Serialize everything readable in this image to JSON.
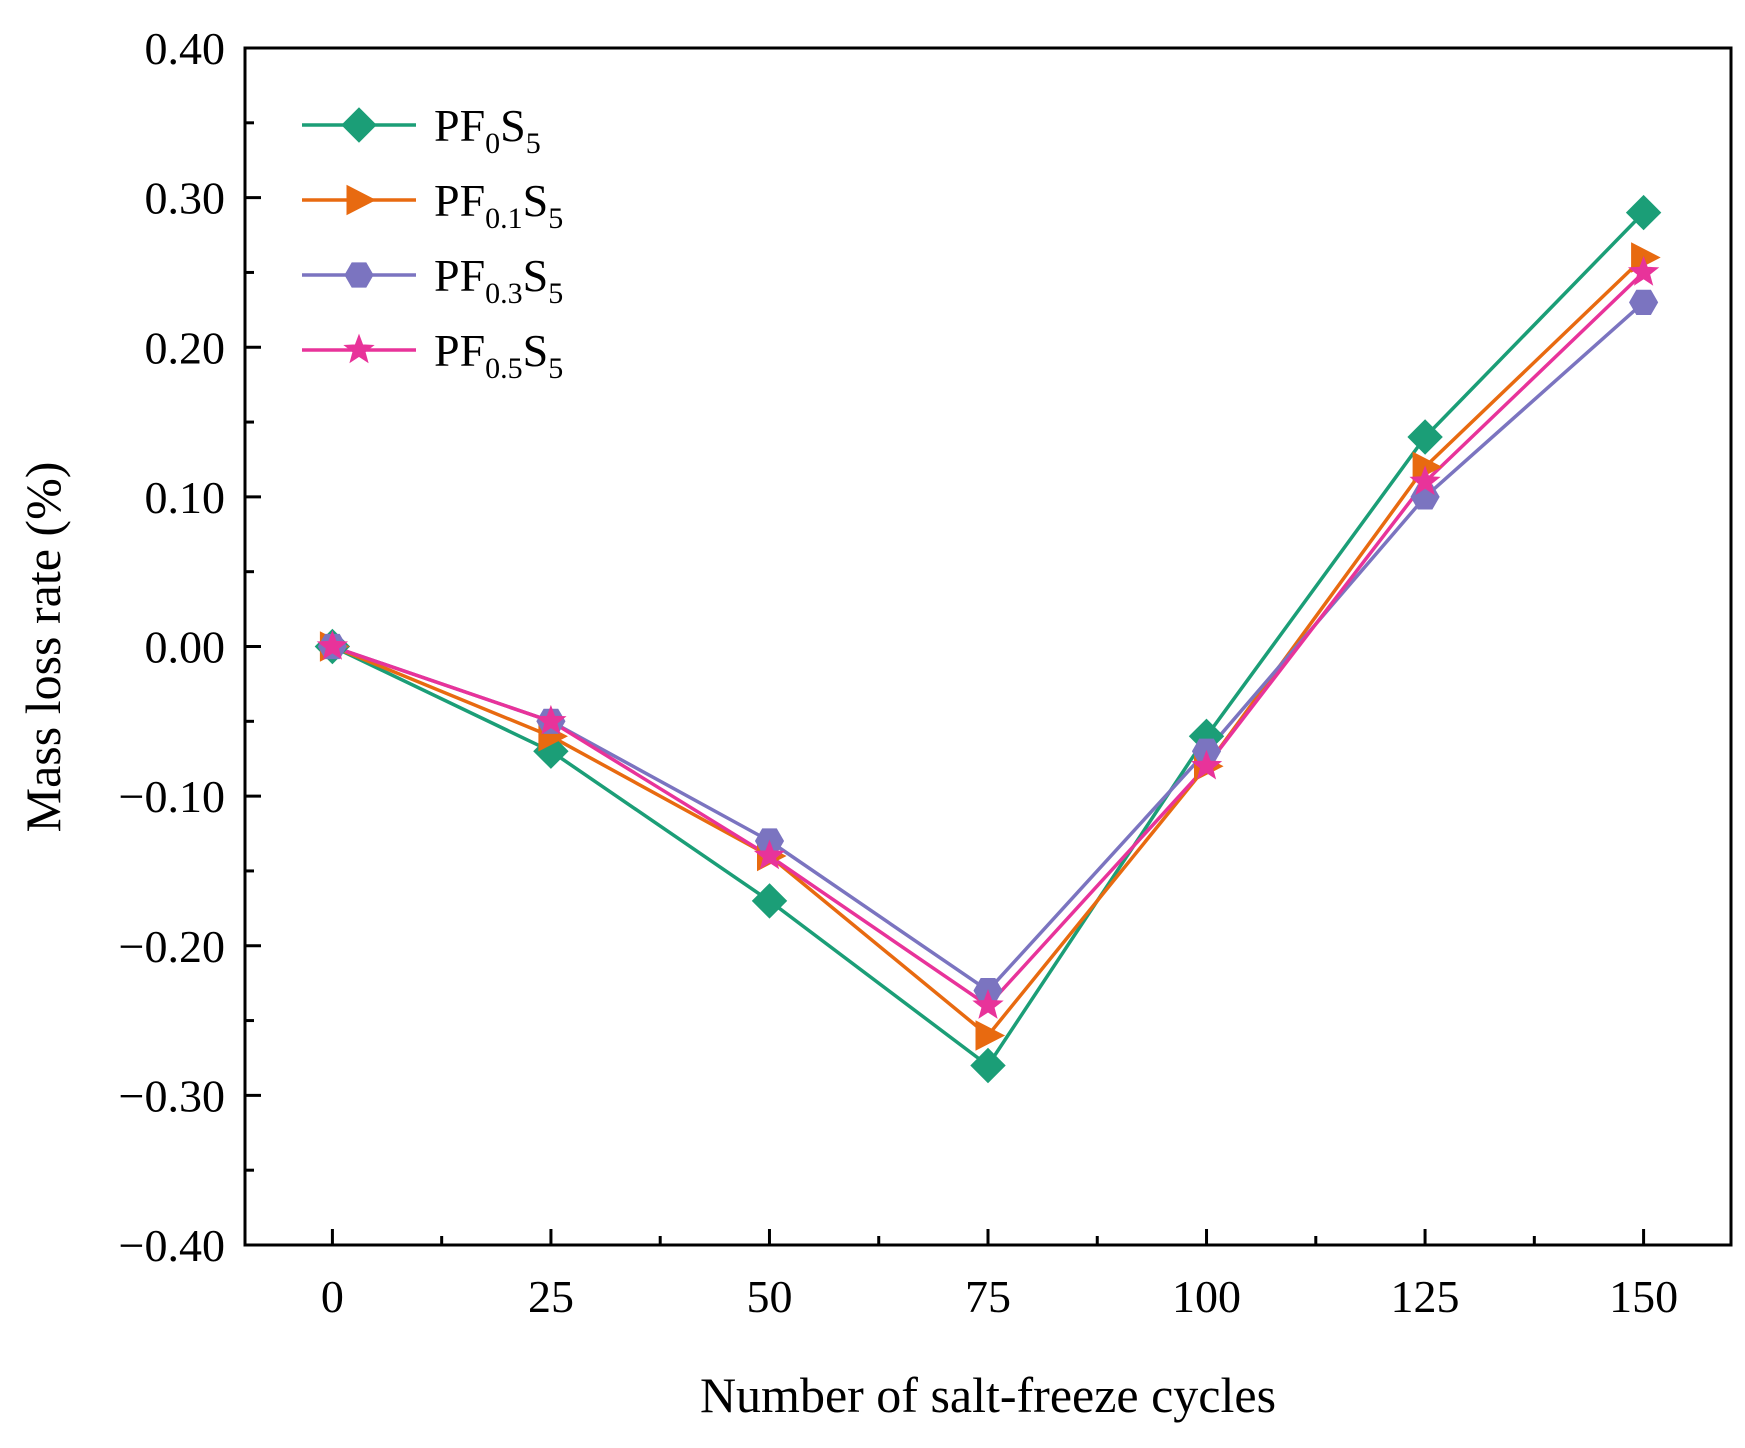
{
  "chart_data": {
    "type": "line",
    "title": "",
    "xlabel": "Number of salt-freeze cycles",
    "ylabel": "Mass loss rate (%)",
    "x": [
      0,
      25,
      50,
      75,
      100,
      125,
      150
    ],
    "xticks": [
      "0",
      "25",
      "50",
      "75",
      "100",
      "125",
      "150"
    ],
    "xlim": [
      -10,
      160
    ],
    "ylim": [
      -0.4,
      0.4
    ],
    "yticks": [
      0.4,
      0.3,
      0.2,
      0.1,
      0.0,
      -0.1,
      -0.2,
      -0.3,
      -0.4
    ],
    "yticklabels": [
      "0.40",
      "0.30",
      "0.20",
      "0.10",
      "0.00",
      "−0.10",
      "−0.20",
      "−0.30",
      "−0.40"
    ],
    "grid": false,
    "legend_position": "top-left",
    "series": [
      {
        "name": "PF0S5",
        "label_main": "PF",
        "label_sub1": "0",
        "label_mid": "S",
        "label_sub2": "5",
        "color": "#1b9e77",
        "marker": "diamond",
        "values": [
          0.0,
          -0.07,
          -0.17,
          -0.28,
          -0.06,
          0.14,
          0.29
        ]
      },
      {
        "name": "PF0.1S5",
        "label_main": "PF",
        "label_sub1": "0.1",
        "label_mid": "S",
        "label_sub2": "5",
        "color": "#e86a10",
        "marker": "triangle-right",
        "values": [
          0.0,
          -0.06,
          -0.14,
          -0.26,
          -0.08,
          0.12,
          0.26
        ]
      },
      {
        "name": "PF0.3S5",
        "label_main": "PF",
        "label_sub1": "0.3",
        "label_mid": "S",
        "label_sub2": "5",
        "color": "#7b74c0",
        "marker": "hexagon",
        "values": [
          0.0,
          -0.05,
          -0.13,
          -0.23,
          -0.07,
          0.1,
          0.23
        ]
      },
      {
        "name": "PF0.5S5",
        "label_main": "PF",
        "label_sub1": "0.5",
        "label_mid": "S",
        "label_sub2": "5",
        "color": "#e8339a",
        "marker": "star",
        "values": [
          0.0,
          -0.05,
          -0.14,
          -0.24,
          -0.08,
          0.11,
          0.25
        ]
      }
    ]
  }
}
